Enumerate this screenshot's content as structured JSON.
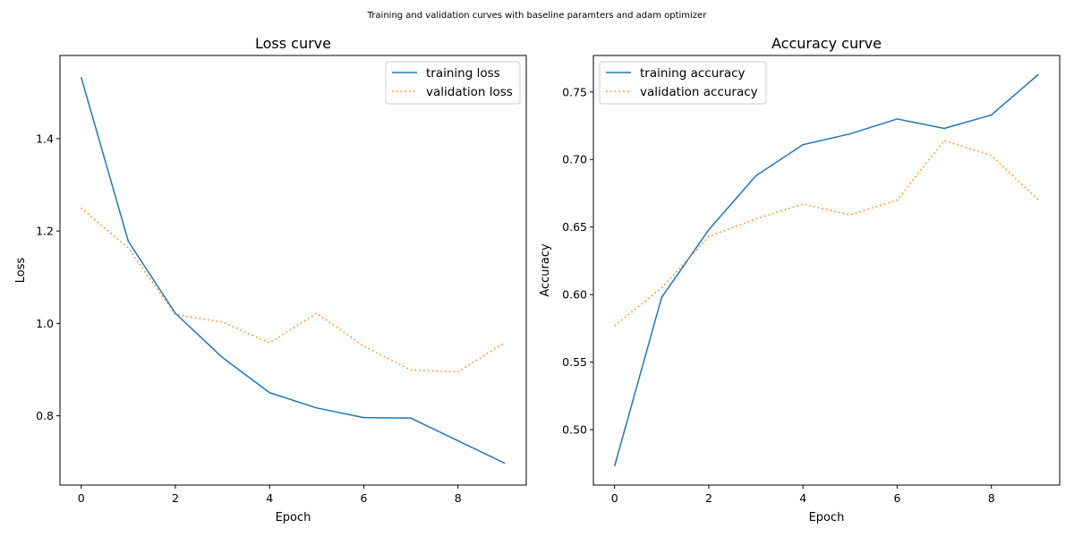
{
  "figure": {
    "suptitle": "Training and validation curves with baseline paramters and adam optimizer"
  },
  "colors": {
    "training": "#1f77b4",
    "validation": "#ff7f0e"
  },
  "chart_data": [
    {
      "type": "line",
      "title": "Loss curve",
      "xlabel": "Epoch",
      "ylabel": "Loss",
      "xlim": [
        -0.45,
        9.45
      ],
      "ylim": [
        0.65,
        1.58
      ],
      "xticks": [
        0,
        2,
        4,
        6,
        8
      ],
      "xtick_labels": [
        "0",
        "2",
        "4",
        "6",
        "8"
      ],
      "yticks": [
        0.8,
        1.0,
        1.2,
        1.4
      ],
      "ytick_labels": [
        "0.8",
        "1.0",
        "1.2",
        "1.4"
      ],
      "legend": "top-right",
      "grid": false,
      "x": [
        0,
        1,
        2,
        3,
        4,
        5,
        6,
        7,
        8,
        9
      ],
      "series": [
        {
          "name": "training loss",
          "style": "solid",
          "values": [
            1.533,
            1.178,
            1.022,
            0.926,
            0.85,
            0.817,
            0.796,
            0.795,
            0.746,
            0.697
          ]
        },
        {
          "name": "validation loss",
          "style": "dotted",
          "values": [
            1.25,
            1.163,
            1.019,
            1.003,
            0.958,
            1.022,
            0.951,
            0.899,
            0.895,
            0.959
          ]
        }
      ]
    },
    {
      "type": "line",
      "title": "Accuracy curve",
      "xlabel": "Epoch",
      "ylabel": "Accuracy",
      "xlim": [
        -0.45,
        9.45
      ],
      "ylim": [
        0.459,
        0.777
      ],
      "xticks": [
        0,
        2,
        4,
        6,
        8
      ],
      "xtick_labels": [
        "0",
        "2",
        "4",
        "6",
        "8"
      ],
      "yticks": [
        0.5,
        0.55,
        0.6,
        0.65,
        0.7,
        0.75
      ],
      "ytick_labels": [
        "0.50",
        "0.55",
        "0.60",
        "0.65",
        "0.70",
        "0.75"
      ],
      "legend": "top-left",
      "grid": false,
      "x": [
        0,
        1,
        2,
        3,
        4,
        5,
        6,
        7,
        8,
        9
      ],
      "series": [
        {
          "name": "training accuracy",
          "style": "solid",
          "values": [
            0.473,
            0.598,
            0.648,
            0.688,
            0.711,
            0.719,
            0.73,
            0.723,
            0.733,
            0.763
          ]
        },
        {
          "name": "validation accuracy",
          "style": "dotted",
          "values": [
            0.577,
            0.605,
            0.643,
            0.656,
            0.667,
            0.659,
            0.67,
            0.714,
            0.703,
            0.67
          ]
        }
      ]
    }
  ]
}
